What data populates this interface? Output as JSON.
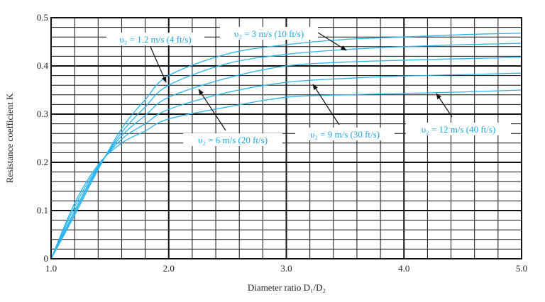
{
  "chart_data": {
    "type": "line",
    "title": "",
    "xlabel": "Diameter ratio D₁/D₂",
    "ylabel": "Resistance coefficient K",
    "xlim": [
      1.0,
      5.0
    ],
    "ylim": [
      0,
      0.5
    ],
    "x_ticks": [
      "1.0",
      "2.0",
      "3.0",
      "4.0",
      "5.0"
    ],
    "y_ticks": [
      "0",
      "0.1",
      "0.2",
      "0.3",
      "0.4",
      "0.5"
    ],
    "x_minor_step": 0.2,
    "y_minor_step": 0.02,
    "grid": true,
    "line_color": "#29b4ee",
    "annotation_color": "#1aa7e6",
    "x": [
      1.0,
      1.2,
      1.4,
      1.6,
      1.8,
      2.0,
      2.5,
      3.0,
      3.5,
      4.0,
      4.5,
      5.0
    ],
    "series": [
      {
        "name": "υ₂ = 1.2 m/s (4 ft/s)",
        "values": [
          0,
          0.09,
          0.185,
          0.27,
          0.33,
          0.38,
          0.425,
          0.444,
          0.455,
          0.46,
          0.465,
          0.468
        ]
      },
      {
        "name": "υ₂ = 3 m/s (10 ft/s)",
        "values": [
          0,
          0.095,
          0.188,
          0.262,
          0.315,
          0.36,
          0.405,
          0.424,
          0.434,
          0.44,
          0.444,
          0.447
        ]
      },
      {
        "name": "υ₂ = 6 m/s (20 ft/s)",
        "values": [
          0,
          0.1,
          0.19,
          0.255,
          0.297,
          0.335,
          0.375,
          0.4,
          0.408,
          0.412,
          0.415,
          0.418
        ]
      },
      {
        "name": "υ₂ = 9 m/s (30 ft/s)",
        "values": [
          0,
          0.108,
          0.192,
          0.248,
          0.28,
          0.31,
          0.345,
          0.366,
          0.374,
          0.379,
          0.382,
          0.385
        ]
      },
      {
        "name": "υ₂ = 12 m/s (40 ft/s)",
        "values": [
          0,
          0.115,
          0.195,
          0.24,
          0.265,
          0.29,
          0.315,
          0.335,
          0.34,
          0.343,
          0.346,
          0.35
        ]
      }
    ]
  }
}
